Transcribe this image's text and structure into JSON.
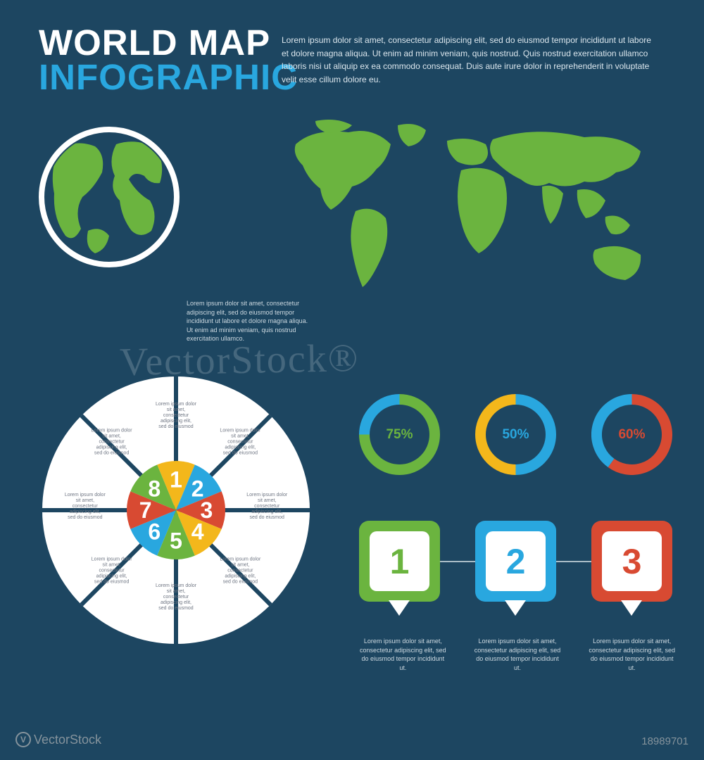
{
  "background_color": "#1d4661",
  "title": {
    "line1": "WORLD MAP",
    "line2": "INFOGRAPHIC",
    "line1_color": "#ffffff",
    "line2_color": "#29a7df",
    "fontsize": 51
  },
  "intro_text": "Lorem ipsum dolor sit amet, consectetur adipiscing elit, sed do eiusmod tempor incididunt ut labore et dolore magna aliqua. Ut enim ad minim veniam, quis nostrud. Quis nostrud exercitation ullamco laboris nisi ut aliquip ex ea commodo consequat. Duis aute irure dolor in reprehenderit in voluptate velit esse cillum dolore eu.",
  "globe": {
    "ring_color": "#ffffff",
    "land_color": "#6bb43f",
    "ocean_color": "#1d4661"
  },
  "world_map": {
    "land_color": "#6bb43f"
  },
  "map_caption": "Lorem ipsum dolor sit amet, consectetur adipiscing elit, sed do eiusmod tempor incididunt ut labore et dolore magna aliqua. Ut enim ad minim veniam, quis nostrud exercitation ullamco.",
  "wheel": {
    "type": "segmented-pie",
    "outer_color": "#ffffff",
    "divider_color": "#1d4661",
    "segments": [
      {
        "num": "1",
        "color": "#f3b71b"
      },
      {
        "num": "2",
        "color": "#29a7df"
      },
      {
        "num": "3",
        "color": "#d84a32"
      },
      {
        "num": "4",
        "color": "#f3b71b"
      },
      {
        "num": "5",
        "color": "#6bb43f"
      },
      {
        "num": "6",
        "color": "#29a7df"
      },
      {
        "num": "7",
        "color": "#d84a32"
      },
      {
        "num": "8",
        "color": "#6bb43f"
      }
    ],
    "segment_text": "Lorem ipsum dolor sit amet, consectetur adipiscing elit, sed do eiusmod tempor incididunt.",
    "text_color": "#707784"
  },
  "donuts": [
    {
      "value": 75,
      "label": "75%",
      "primary": "#6bb43f",
      "secondary": "#29a7df",
      "label_color": "#6bb43f"
    },
    {
      "value": 50,
      "label": "50%",
      "primary": "#29a7df",
      "secondary": "#f3b71b",
      "label_color": "#29a7df"
    },
    {
      "value": 60,
      "label": "60%",
      "primary": "#d84a32",
      "secondary": "#29a7df",
      "label_color": "#d84a32"
    }
  ],
  "donut_style": {
    "thickness": 15,
    "radius": 50,
    "bg": "#1d4661"
  },
  "pins": [
    {
      "num": "1",
      "color": "#6bb43f",
      "num_color": "#6bb43f"
    },
    {
      "num": "2",
      "color": "#29a7df",
      "num_color": "#29a7df"
    },
    {
      "num": "3",
      "color": "#d84a32",
      "num_color": "#d84a32"
    }
  ],
  "pin_text": "Lorem ipsum dolor sit amet, consectetur adipiscing elit, sed do eiusmod tempor incididunt ut.",
  "watermark": "VectorStock®",
  "footer": {
    "brand": "VectorStock",
    "id": "18989701"
  }
}
